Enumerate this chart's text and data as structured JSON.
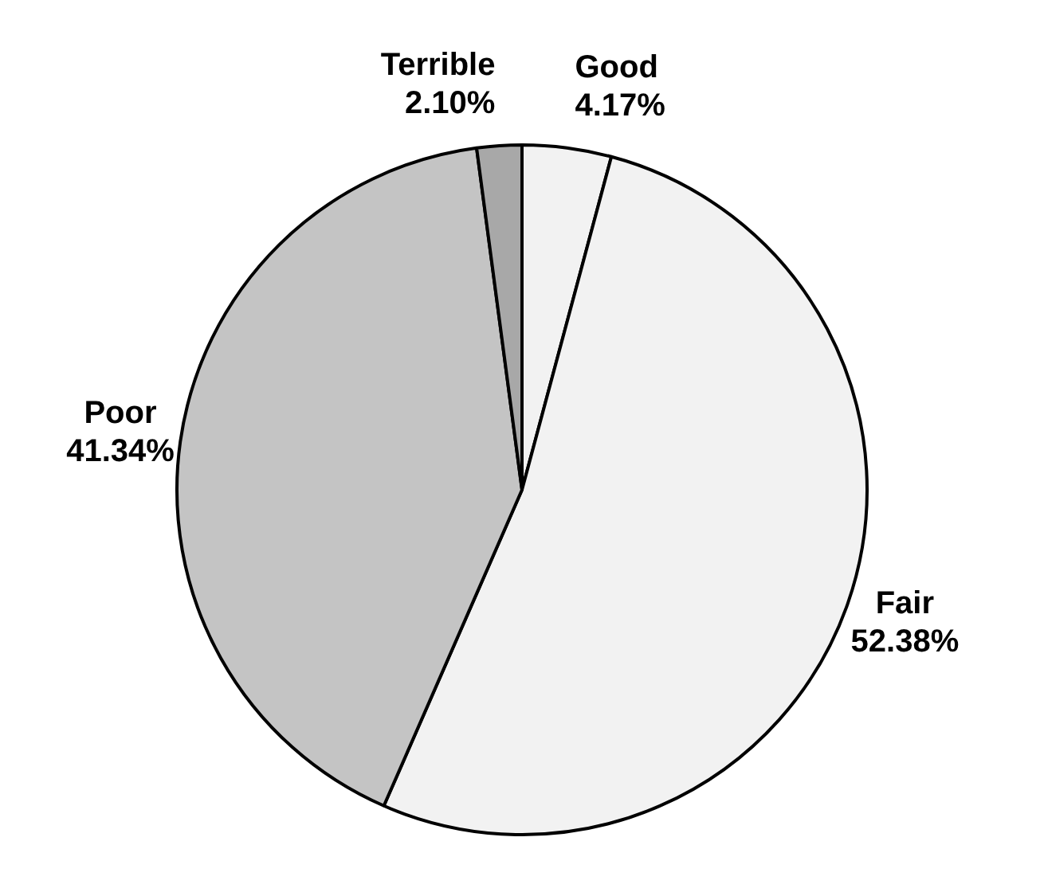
{
  "chart_data": {
    "type": "pie",
    "categories": [
      "Good",
      "Fair",
      "Poor",
      "Terrible"
    ],
    "values": [
      4.17,
      52.38,
      41.34,
      2.1
    ],
    "value_labels": [
      "4.17%",
      "52.38%",
      "41.34%",
      "2.10%"
    ],
    "colors": [
      "#f2f2f2",
      "#f2f2f2",
      "#c4c4c4",
      "#a8a8a8"
    ],
    "legend": false
  }
}
